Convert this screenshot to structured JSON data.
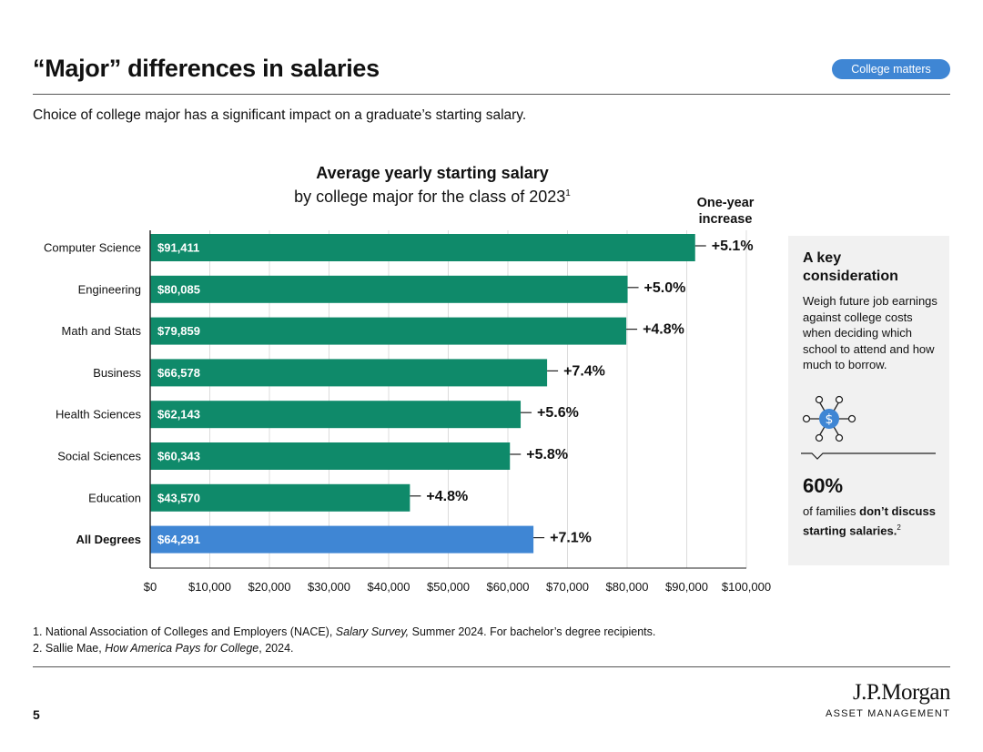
{
  "header": {
    "title": "“Major” differences in salaries",
    "badge": "College matters",
    "subtitle": "Choice of college major has a significant impact on a graduate’s starting salary."
  },
  "chart_data": {
    "type": "bar",
    "orientation": "horizontal",
    "title": "Average yearly starting salary",
    "subtitle": "by college major for the class of 2023",
    "subtitle_footnote": "1",
    "increase_header": "One-year increase",
    "categories": [
      "Computer Science",
      "Engineering",
      "Math and Stats",
      "Business",
      "Health Sciences",
      "Social Sciences",
      "Education",
      "All Degrees"
    ],
    "values": [
      91411,
      80085,
      79859,
      66578,
      62143,
      60343,
      43570,
      64291
    ],
    "value_labels": [
      "$91,411",
      "$80,085",
      "$79,859",
      "$66,578",
      "$62,143",
      "$60,343",
      "$43,570",
      "$64,291"
    ],
    "increases": [
      "+5.1%",
      "+5.0%",
      "+4.8%",
      "+7.4%",
      "+5.6%",
      "+5.8%",
      "+4.8%",
      "+7.1%"
    ],
    "highlight_category": "All Degrees",
    "xlim": [
      0,
      100000
    ],
    "xticks": [
      0,
      10000,
      20000,
      30000,
      40000,
      50000,
      60000,
      70000,
      80000,
      90000,
      100000
    ],
    "xtick_labels": [
      "$0",
      "$10,000",
      "$20,000",
      "$30,000",
      "$40,000",
      "$50,000",
      "$60,000",
      "$70,000",
      "$80,000",
      "$90,000",
      "$100,000"
    ],
    "grid": true,
    "colors": {
      "bar": "#0f8a6a",
      "highlight": "#3f86d4",
      "grid": "#dcdcdc",
      "axis": "#222222"
    }
  },
  "panel": {
    "heading": "A key consideration",
    "body": "Weigh future job earnings against college costs when deciding which school to attend and how much to borrow.",
    "icon": "dollar-network-icon",
    "stat": "60%",
    "foot_pre": "of families ",
    "foot_bold": "don’t discuss starting salaries.",
    "foot_note": "2"
  },
  "footnotes": {
    "fn1_pre": "1.  National Association of Colleges and Employers (NACE), ",
    "fn1_em": "Salary Survey,",
    "fn1_post": " Summer 2024. For bachelor’s degree recipients.",
    "fn2_pre": "2. Sallie Mae, ",
    "fn2_em": "How America Pays for College",
    "fn2_post": ", 2024."
  },
  "footer": {
    "page_number": "5",
    "logo_main": "J.P.Morgan",
    "logo_sub": "ASSET MANAGEMENT"
  }
}
